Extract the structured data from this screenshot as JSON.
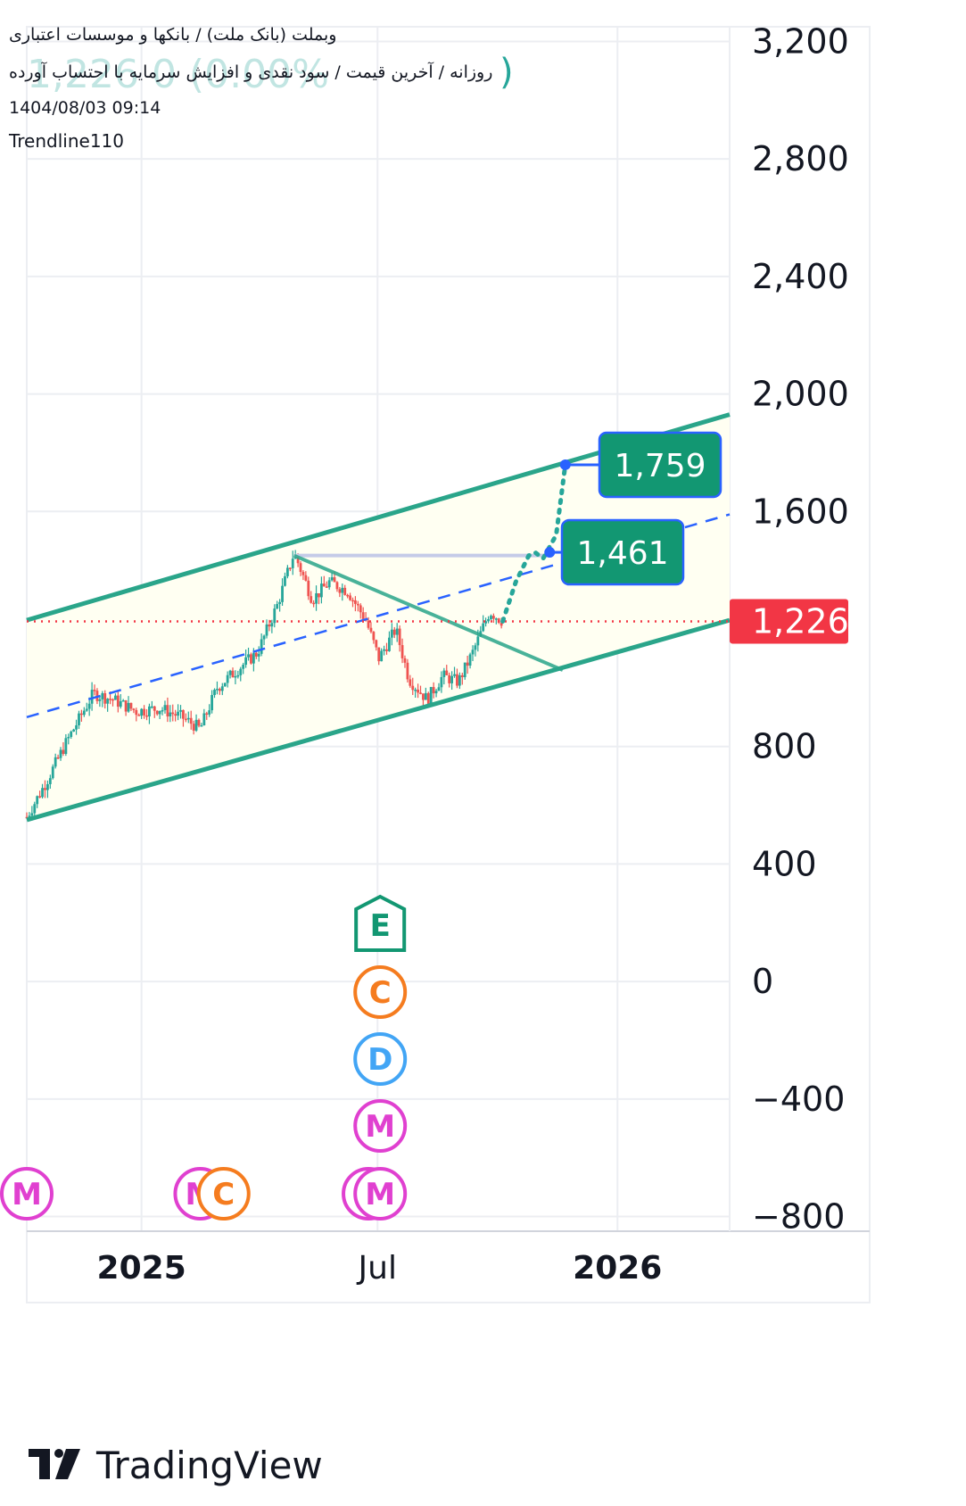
{
  "header": {
    "symbol_line": "وبملت (بانک ملت) / بانکها و موسسات اعتباری",
    "subtitle_line": "روزانه / آخرین قیمت / سود نقدی و افزایش سرمایه با احتساب آورده",
    "ghost_line": "1,226 0 (0.00%",
    "ghost_paren": ")",
    "datetime": "1404/08/03 09:14",
    "author": "Trendline110"
  },
  "colors": {
    "channel": "#2aa58a",
    "channel_fill": "#fffff2",
    "up_candle": "#26a69a",
    "down_candle": "#ef5350",
    "midline": "#2962ff",
    "last_price": "#f23645",
    "target_tag": "#129772",
    "target_tag_border": "#2962ff",
    "grid": "#eceef2"
  },
  "chart_data": {
    "type": "candlestick",
    "y_ticks": [
      "3,200",
      "2,800",
      "2,400",
      "2,000",
      "1,600",
      "1,226",
      "800",
      "400",
      "0",
      "−400",
      "−800"
    ],
    "y_tick_values": [
      3200,
      2800,
      2400,
      2000,
      1600,
      800,
      400,
      0,
      -400,
      -800
    ],
    "ylim": [
      -850,
      3250
    ],
    "x_ticks": [
      {
        "label": "2025",
        "date": "2025-01-01",
        "bold": true
      },
      {
        "label": "Jul",
        "date": "2025-07-01",
        "bold": false
      },
      {
        "label": "2026",
        "date": "2026-01-01",
        "bold": true
      }
    ],
    "xlim": [
      "2024-10-05",
      "2026-03-28"
    ],
    "last_price": 1226,
    "last_price_label": "1,226",
    "price_series": [
      [
        "2024-10-05",
        560
      ],
      [
        "2024-10-20",
        680
      ],
      [
        "2024-11-05",
        820
      ],
      [
        "2024-11-25",
        980
      ],
      [
        "2024-12-10",
        960
      ],
      [
        "2024-12-28",
        920
      ],
      [
        "2025-01-15",
        930
      ],
      [
        "2025-02-01",
        900
      ],
      [
        "2025-02-15",
        860
      ],
      [
        "2025-02-28",
        1000
      ],
      [
        "2025-03-15",
        1060
      ],
      [
        "2025-03-31",
        1120
      ],
      [
        "2025-04-15",
        1280
      ],
      [
        "2025-04-28",
        1460
      ],
      [
        "2025-05-12",
        1300
      ],
      [
        "2025-05-25",
        1360
      ],
      [
        "2025-06-08",
        1330
      ],
      [
        "2025-06-22",
        1230
      ],
      [
        "2025-07-02",
        1100
      ],
      [
        "2025-07-15",
        1200
      ],
      [
        "2025-07-25",
        1030
      ],
      [
        "2025-08-08",
        960
      ],
      [
        "2025-08-20",
        1040
      ],
      [
        "2025-09-01",
        1020
      ],
      [
        "2025-09-12",
        1120
      ],
      [
        "2025-09-25",
        1260
      ],
      [
        "2025-10-05",
        1226
      ]
    ],
    "channel_upper": [
      [
        "2024-10-05",
        1230
      ],
      [
        "2026-03-28",
        1930
      ]
    ],
    "channel_lower": [
      [
        "2024-10-05",
        550
      ],
      [
        "2026-03-28",
        1230
      ]
    ],
    "midline": [
      [
        "2024-10-05",
        900
      ],
      [
        "2026-03-28",
        1590
      ]
    ],
    "descending_line": [
      [
        "2025-04-28",
        1450
      ],
      [
        "2025-11-20",
        1060
      ]
    ],
    "horizontal_level": [
      [
        "2025-04-28",
        1450
      ],
      [
        "2025-11-10",
        1450
      ]
    ],
    "projection": [
      [
        "2025-10-05",
        1226
      ],
      [
        "2025-10-15",
        1360
      ],
      [
        "2025-10-25",
        1450
      ],
      [
        "2025-10-30",
        1460
      ],
      [
        "2025-11-05",
        1440
      ],
      [
        "2025-11-15",
        1520
      ],
      [
        "2025-11-22",
        1759
      ]
    ],
    "targets": [
      {
        "value": 1759,
        "label": "1,759",
        "date": "2025-11-22"
      },
      {
        "value": 1461,
        "label": "1,461",
        "date": "2025-11-10"
      }
    ],
    "events_stack": {
      "date": "2025-07-03",
      "letters": [
        "E",
        "C",
        "D",
        "M"
      ]
    },
    "events_bottom": [
      {
        "date": "2024-10-05",
        "letter": "M"
      },
      {
        "date": "2025-02-15",
        "letter": "M"
      },
      {
        "date": "2025-03-05",
        "letter": "C"
      },
      {
        "date": "2025-06-24",
        "letter": "M"
      },
      {
        "date": "2025-07-03",
        "letter": "M"
      }
    ]
  },
  "branding": {
    "logo_icon": "tradingview-logo-icon",
    "name": "TradingView"
  }
}
